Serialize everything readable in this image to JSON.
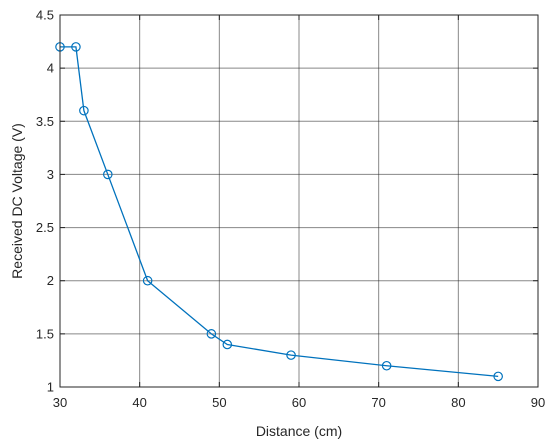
{
  "chart_data": {
    "type": "line",
    "title": "",
    "xlabel": "Distance (cm)",
    "ylabel": "Received DC Voltage (V)",
    "xlim": [
      30,
      90
    ],
    "ylim": [
      1,
      4.5
    ],
    "xticks": [
      "30",
      "40",
      "50",
      "60",
      "70",
      "80",
      "90"
    ],
    "yticks": [
      "1",
      "1.5",
      "2",
      "2.5",
      "3",
      "3.5",
      "4",
      "4.5"
    ],
    "grid": true,
    "marker": "circle",
    "series": [
      {
        "color": "#0072BD",
        "x": [
          30,
          32,
          33,
          36,
          41,
          49,
          51,
          59,
          71,
          85
        ],
        "y": [
          4.2,
          4.2,
          3.6,
          3.0,
          2.0,
          1.5,
          1.4,
          1.3,
          1.2,
          1.1
        ]
      }
    ]
  }
}
